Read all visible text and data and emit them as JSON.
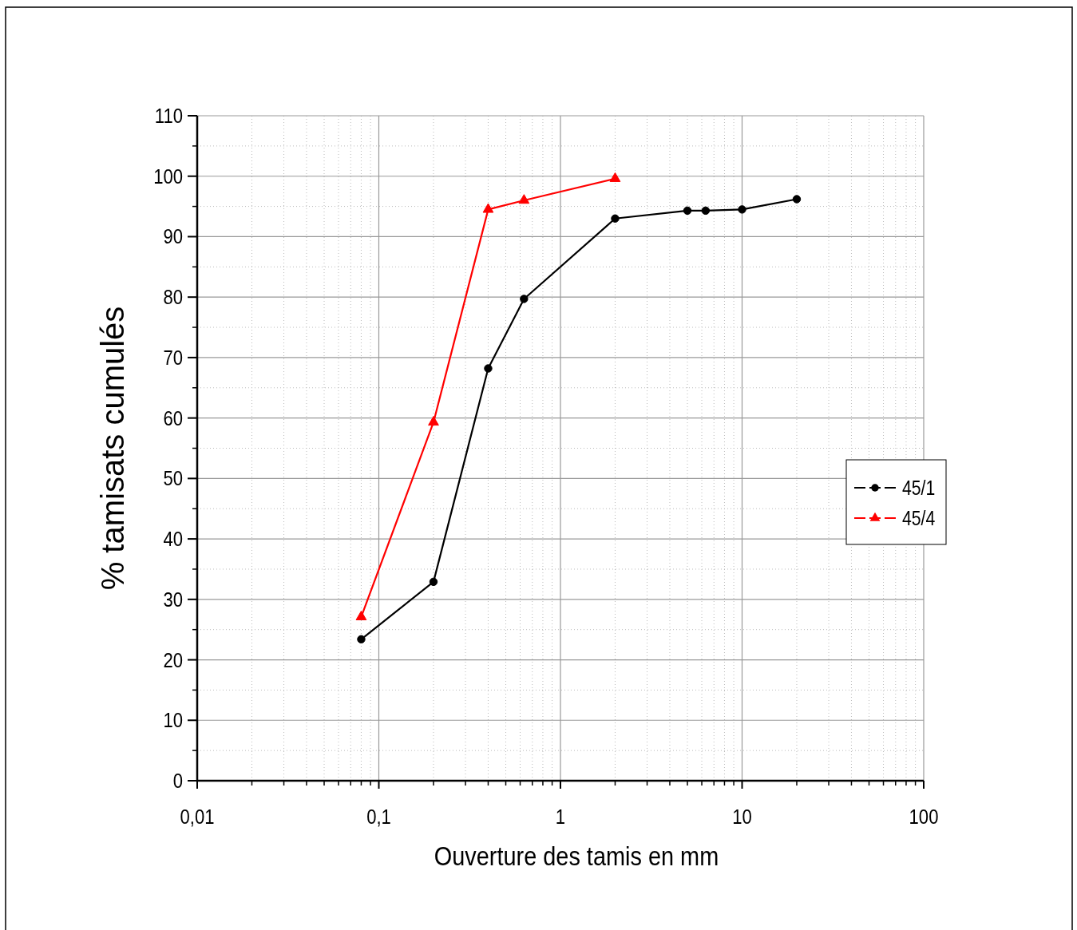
{
  "chart_data": {
    "type": "line",
    "xlabel": "Ouverture des tamis en mm",
    "ylabel": "% tamisats cumulés",
    "log": "x",
    "xlim": [
      0.01,
      100
    ],
    "xticks": [
      {
        "value": 0.01,
        "label": "0,01"
      },
      {
        "value": 0.1,
        "label": "0,1"
      },
      1,
      10,
      100
    ],
    "ylim": [
      0,
      110
    ],
    "yticks": [
      0,
      10,
      20,
      30,
      40,
      50,
      60,
      70,
      80,
      90,
      100,
      110
    ],
    "grid": true,
    "legend": "right",
    "line_style": "solid",
    "series": [
      {
        "name": "45/1",
        "color": "#000000",
        "marker": "circle",
        "x": [
          0.08,
          0.2,
          0.4,
          0.63,
          2,
          5,
          6.3,
          10,
          20
        ],
        "values": [
          23.4,
          32.9,
          68.2,
          79.7,
          93.0,
          94.3,
          94.3,
          94.5,
          96.2
        ]
      },
      {
        "name": "45/4",
        "color": "#ff0000",
        "marker": "triangle",
        "x": [
          0.08,
          0.2,
          0.4,
          0.63,
          2
        ],
        "values": [
          27.1,
          59.3,
          94.5,
          96.0,
          99.6
        ]
      }
    ]
  }
}
